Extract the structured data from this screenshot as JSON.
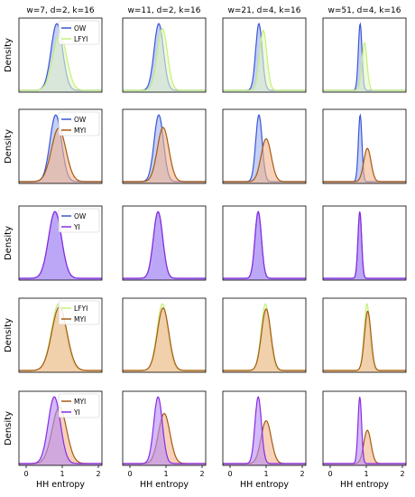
{
  "figure": {
    "columns": [
      "w=7, d=2, k=16",
      "w=11, d=2, k=16",
      "w=21, d=4, k=16",
      "w=51, d=4, k=16"
    ],
    "ylabel": "Density",
    "xlabel": "HH entropy",
    "xticks": [
      "0",
      "1",
      "2"
    ]
  },
  "classes": {
    "OW": {
      "line": "#3a56d6",
      "fill": "#9fb0ef"
    },
    "LFYI": {
      "line": "#c6f07a",
      "fill": "#e4f7c6"
    },
    "MYI": {
      "line": "#a55a12",
      "fill": "#f2b48c"
    },
    "YI": {
      "line": "#8a2be2",
      "fill": "#b58cf7"
    }
  },
  "chart_data": {
    "type": "area",
    "layout": "grid of density curves, 5 rows x 4 columns",
    "xlim": [
      -0.2,
      2.1
    ],
    "legend_placement": "top-right of first column",
    "rows": [
      {
        "legend": [
          "OW",
          "LFYI"
        ],
        "pairs": [
          [
            {
              "cls": "OW",
              "mu": 0.85,
              "sd": 0.16
            },
            {
              "cls": "LFYI",
              "mu": 0.93,
              "sd": 0.19
            }
          ],
          [
            {
              "cls": "OW",
              "mu": 0.8,
              "sd": 0.13
            },
            {
              "cls": "LFYI",
              "mu": 0.9,
              "sd": 0.14
            }
          ],
          [
            {
              "cls": "OW",
              "mu": 0.8,
              "sd": 0.09
            },
            {
              "cls": "LFYI",
              "mu": 0.92,
              "sd": 0.1
            }
          ],
          [
            {
              "cls": "OW",
              "mu": 0.83,
              "sd": 0.05
            },
            {
              "cls": "LFYI",
              "mu": 0.95,
              "sd": 0.07
            }
          ]
        ]
      },
      {
        "legend": [
          "OW",
          "MYI"
        ],
        "pairs": [
          [
            {
              "cls": "OW",
              "mu": 0.82,
              "sd": 0.16
            },
            {
              "cls": "MYI",
              "mu": 0.9,
              "sd": 0.2
            }
          ],
          [
            {
              "cls": "OW",
              "mu": 0.8,
              "sd": 0.13
            },
            {
              "cls": "MYI",
              "mu": 0.92,
              "sd": 0.16
            }
          ],
          [
            {
              "cls": "OW",
              "mu": 0.8,
              "sd": 0.09
            },
            {
              "cls": "MYI",
              "mu": 1.0,
              "sd": 0.14
            }
          ],
          [
            {
              "cls": "OW",
              "mu": 0.83,
              "sd": 0.05
            },
            {
              "cls": "MYI",
              "mu": 1.03,
              "sd": 0.1
            }
          ]
        ]
      },
      {
        "legend": [
          "OW",
          "YI"
        ],
        "pairs": [
          [
            {
              "cls": "OW",
              "mu": 0.8,
              "sd": 0.18
            },
            {
              "cls": "YI",
              "mu": 0.8,
              "sd": 0.18
            }
          ],
          [
            {
              "cls": "OW",
              "mu": 0.78,
              "sd": 0.13
            },
            {
              "cls": "YI",
              "mu": 0.78,
              "sd": 0.13
            }
          ],
          [
            {
              "cls": "OW",
              "mu": 0.78,
              "sd": 0.09
            },
            {
              "cls": "YI",
              "mu": 0.78,
              "sd": 0.09
            }
          ],
          [
            {
              "cls": "OW",
              "mu": 0.82,
              "sd": 0.05
            },
            {
              "cls": "YI",
              "mu": 0.82,
              "sd": 0.05
            }
          ]
        ]
      },
      {
        "legend": [
          "LFYI",
          "MYI"
        ],
        "pairs": [
          [
            {
              "cls": "LFYI",
              "mu": 0.9,
              "sd": 0.2
            },
            {
              "cls": "MYI",
              "mu": 0.92,
              "sd": 0.21
            }
          ],
          [
            {
              "cls": "LFYI",
              "mu": 0.9,
              "sd": 0.15
            },
            {
              "cls": "MYI",
              "mu": 0.92,
              "sd": 0.16
            }
          ],
          [
            {
              "cls": "LFYI",
              "mu": 0.98,
              "sd": 0.12
            },
            {
              "cls": "MYI",
              "mu": 1.0,
              "sd": 0.13
            }
          ],
          [
            {
              "cls": "LFYI",
              "mu": 1.02,
              "sd": 0.08
            },
            {
              "cls": "MYI",
              "mu": 1.04,
              "sd": 0.09
            }
          ]
        ]
      },
      {
        "legend": [
          "MYI",
          "YI"
        ],
        "pairs": [
          [
            {
              "cls": "MYI",
              "mu": 0.92,
              "sd": 0.2
            },
            {
              "cls": "YI",
              "mu": 0.78,
              "sd": 0.17
            }
          ],
          [
            {
              "cls": "MYI",
              "mu": 0.95,
              "sd": 0.16
            },
            {
              "cls": "YI",
              "mu": 0.78,
              "sd": 0.12
            }
          ],
          [
            {
              "cls": "MYI",
              "mu": 1.0,
              "sd": 0.14
            },
            {
              "cls": "YI",
              "mu": 0.78,
              "sd": 0.09
            }
          ],
          [
            {
              "cls": "MYI",
              "mu": 1.03,
              "sd": 0.1
            },
            {
              "cls": "YI",
              "mu": 0.82,
              "sd": 0.05
            }
          ]
        ]
      }
    ]
  }
}
